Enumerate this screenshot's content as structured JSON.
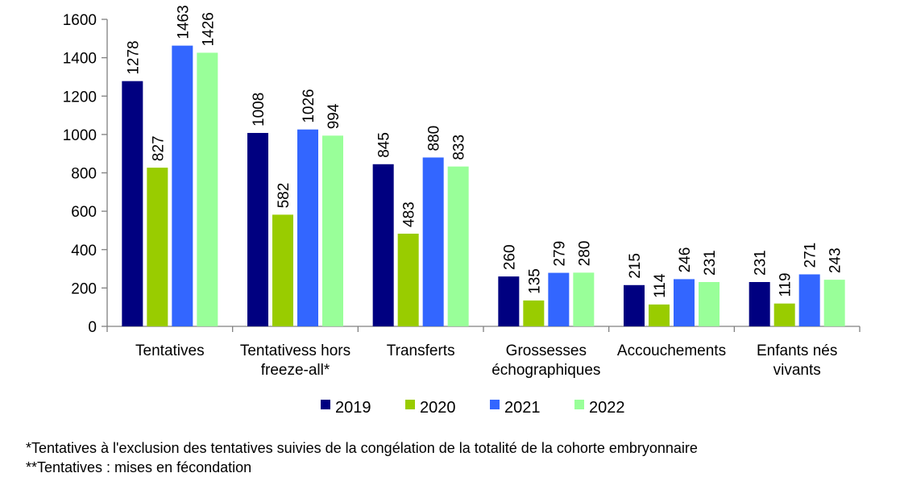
{
  "chart_data": {
    "type": "bar",
    "title": "",
    "xlabel": "",
    "ylabel": "",
    "ylim": [
      0,
      1600
    ],
    "yticks": [
      0,
      200,
      400,
      600,
      800,
      1000,
      1200,
      1400,
      1600
    ],
    "grid": false,
    "legend_position": "bottom",
    "categories": [
      [
        "Tentatives"
      ],
      [
        "Tentativess hors",
        "freeze-all*"
      ],
      [
        "Transferts"
      ],
      [
        "Grossesses",
        "échographiques"
      ],
      [
        "Accouchements"
      ],
      [
        "Enfants nés",
        "vivants"
      ]
    ],
    "series": [
      {
        "name": "2019",
        "color": "#000080",
        "values": [
          1278,
          1008,
          845,
          260,
          215,
          231
        ]
      },
      {
        "name": "2020",
        "color": "#99CC00",
        "values": [
          827,
          582,
          483,
          135,
          114,
          119
        ]
      },
      {
        "name": "2021",
        "color": "#3366FF",
        "values": [
          1463,
          1026,
          880,
          279,
          246,
          271
        ]
      },
      {
        "name": "2022",
        "color": "#99FF99",
        "values": [
          1426,
          994,
          833,
          280,
          231,
          243
        ]
      }
    ]
  },
  "footnotes": {
    "line1": "*Tentatives à l'exclusion des tentatives suivies de la congélation de la totalité de la cohorte embryonnaire",
    "line2": "**Tentatives : mises en fécondation"
  }
}
